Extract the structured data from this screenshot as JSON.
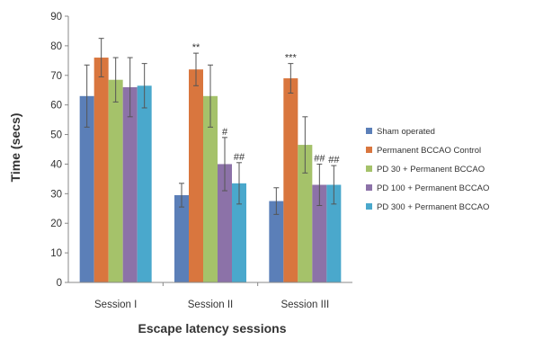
{
  "chart_data": {
    "type": "bar",
    "title": "",
    "xlabel": "Escape latency sessions",
    "ylabel": "Time (secs)",
    "ylim": [
      0,
      90
    ],
    "yticks": [
      0,
      10,
      20,
      30,
      40,
      50,
      60,
      70,
      80,
      90
    ],
    "grid": false,
    "legend_position": "right",
    "categories": [
      "Session I",
      "Session II",
      "Session III"
    ],
    "series": [
      {
        "name": "Sham operated",
        "color": "#5b7fb8",
        "values": [
          63,
          29.5,
          27.5
        ],
        "errors": [
          10.5,
          4,
          4.5
        ]
      },
      {
        "name": "Permanent BCCAO Control",
        "color": "#d9763e",
        "values": [
          76,
          72,
          69
        ],
        "errors": [
          6.5,
          5.5,
          5
        ]
      },
      {
        "name": "PD 30 + Permanent BCCAO",
        "color": "#a5c26a",
        "values": [
          68.5,
          63,
          46.5
        ],
        "errors": [
          7.5,
          10.5,
          9.5
        ]
      },
      {
        "name": "PD 100 + Permanent BCCAO",
        "color": "#8c72a8",
        "values": [
          66,
          40,
          33
        ],
        "errors": [
          10,
          9,
          7
        ]
      },
      {
        "name": "PD 300 + Permanent BCCAO",
        "color": "#4aa8cc",
        "values": [
          66.5,
          33.5,
          33
        ],
        "errors": [
          7.5,
          7,
          6.5
        ]
      }
    ],
    "annotations": [
      {
        "category": 1,
        "series": 1,
        "text": "**"
      },
      {
        "category": 2,
        "series": 1,
        "text": "***"
      },
      {
        "category": 1,
        "series": 3,
        "text": "#"
      },
      {
        "category": 1,
        "series": 4,
        "text": "##"
      },
      {
        "category": 2,
        "series": 3,
        "text": "##"
      },
      {
        "category": 2,
        "series": 4,
        "text": "##"
      }
    ]
  }
}
